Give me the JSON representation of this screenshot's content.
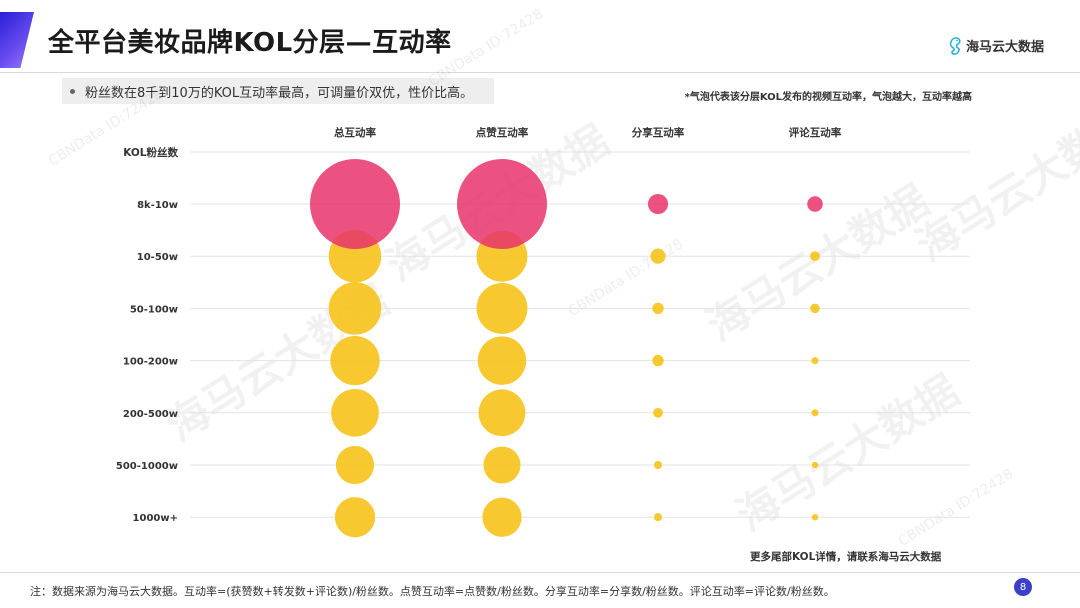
{
  "header": {
    "title": "全平台美妆品牌KOL分层—互动率",
    "logo_text": "海马云大数据",
    "logo_icon": "seahorse-icon"
  },
  "summary": {
    "bullet": "粉丝数在8千到10万的KOL互动率最高，可调量价双优，性价比高。",
    "bubble_note": "*气泡代表该分层KOL发布的视频互动率，气泡越大，互动率越高"
  },
  "footer": {
    "more_info": "更多尾部KOL详情，请联系海马云大数据",
    "note": "注：数据来源为海马云大数据。互动率=(获赞数+转发数+评论数)/粉丝数。点赞互动率=点赞数/粉丝数。分享互动率=分享数/粉丝数。评论互动率=评论数/粉丝数。",
    "page_number": "8"
  },
  "watermark": {
    "brand": "海马云大数据",
    "id_text": "CBNData ID:72428"
  },
  "colors": {
    "highlight": "#e8336b",
    "normal": "#f7c21a",
    "gridline": "#e3e3e3",
    "accent": "#3c3fc8"
  },
  "chart_data": {
    "type": "bubble",
    "row_header": "KOL粉丝数",
    "columns": [
      "总互动率",
      "点赞互动率",
      "分享互动率",
      "评论互动率"
    ],
    "rows": [
      "8k-10w",
      "10-50w",
      "50-100w",
      "100-200w",
      "200-500w",
      "500-1000w",
      "1000w+"
    ],
    "highlight_row": "8k-10w",
    "values": {
      "总互动率": [
        100,
        34,
        34,
        30,
        28,
        18,
        20
      ],
      "点赞互动率": [
        100,
        32,
        32,
        29,
        27,
        17,
        19
      ],
      "分享互动率": [
        5,
        2.8,
        1.6,
        1.6,
        1.2,
        0.8,
        0.8
      ],
      "评论互动率": [
        3,
        1.2,
        1.1,
        0.6,
        0.6,
        0.5,
        0.5
      ]
    },
    "value_note": "relative bubble sizes (largest = 100)"
  }
}
